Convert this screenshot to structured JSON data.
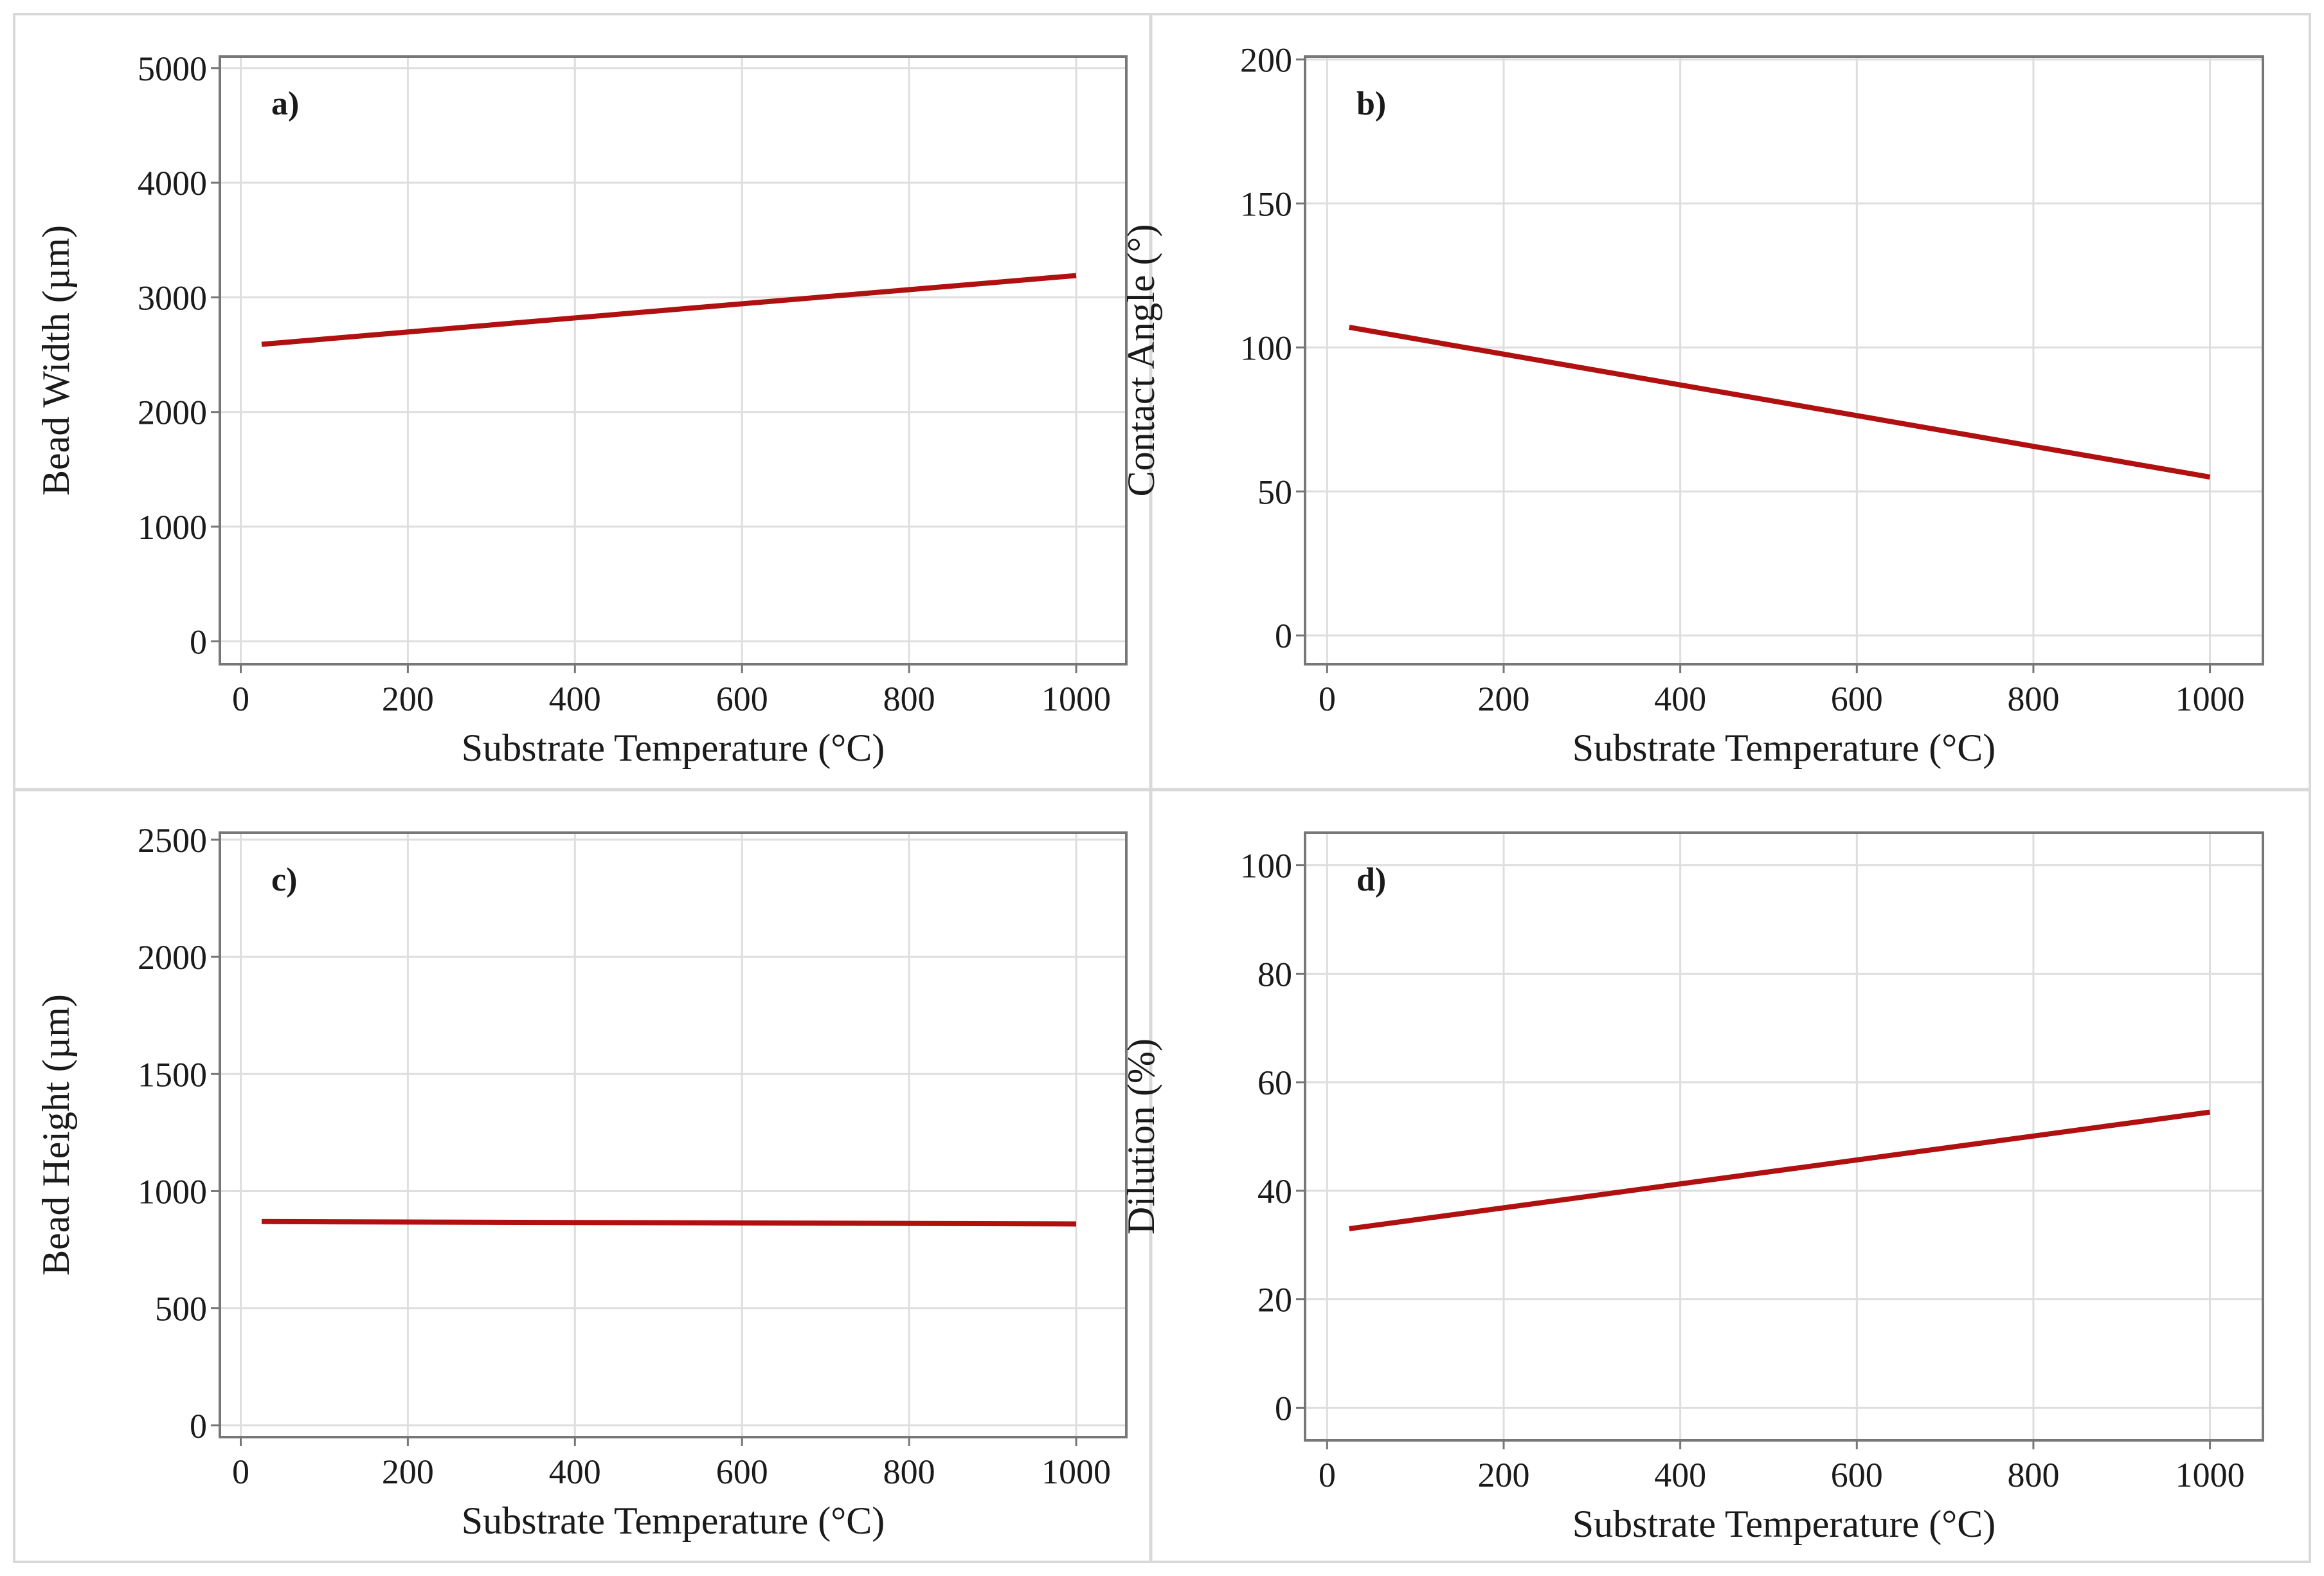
{
  "colors": {
    "line": "#b01010",
    "grid": "#dedede",
    "frame": "#777777",
    "divider": "#d9d9d9"
  },
  "chart_data": [
    {
      "type": "line",
      "panel": "a)",
      "xlabel": "Substrate Temperature (°C)",
      "ylabel": "Bead Width (µm)",
      "xlim": [
        -25,
        1060
      ],
      "ylim": [
        -200,
        5100
      ],
      "xticks": [
        0,
        200,
        400,
        600,
        800,
        1000
      ],
      "yticks": [
        0,
        1000,
        2000,
        3000,
        4000,
        5000
      ],
      "xtick_labels": [
        "0",
        "200",
        "400",
        "600",
        "800",
        "1000"
      ],
      "ytick_labels": [
        "0",
        "1000",
        "2000",
        "3000",
        "4000",
        "5000"
      ],
      "series": [
        {
          "name": "Bead Width",
          "x": [
            25,
            1000
          ],
          "y": [
            2590,
            3190
          ]
        }
      ]
    },
    {
      "type": "line",
      "panel": "b)",
      "xlabel": "Substrate Temperature (°C)",
      "ylabel": "Contact Angle (°)",
      "xlim": [
        -25,
        1060
      ],
      "ylim": [
        -10,
        201
      ],
      "xticks": [
        0,
        200,
        400,
        600,
        800,
        1000
      ],
      "yticks": [
        0,
        50,
        100,
        150,
        200
      ],
      "xtick_labels": [
        "0",
        "200",
        "400",
        "600",
        "800",
        "1000"
      ],
      "ytick_labels": [
        "0",
        "50",
        "100",
        "150",
        "200"
      ],
      "series": [
        {
          "name": "Contact Angle",
          "x": [
            25,
            1000
          ],
          "y": [
            107,
            55
          ]
        }
      ]
    },
    {
      "type": "line",
      "panel": "c)",
      "xlabel": "Substrate Temperature (°C)",
      "ylabel": "Bead Height (µm)",
      "xlim": [
        -25,
        1060
      ],
      "ylim": [
        -50,
        2530
      ],
      "xticks": [
        0,
        200,
        400,
        600,
        800,
        1000
      ],
      "yticks": [
        0,
        500,
        1000,
        1500,
        2000,
        2500
      ],
      "xtick_labels": [
        "0",
        "200",
        "400",
        "600",
        "800",
        "1000"
      ],
      "ytick_labels": [
        "0",
        "500",
        "1000",
        "1500",
        "2000",
        "2500"
      ],
      "series": [
        {
          "name": "Bead Height",
          "x": [
            25,
            1000
          ],
          "y": [
            870,
            860
          ]
        }
      ]
    },
    {
      "type": "line",
      "panel": "d)",
      "xlabel": "Substrate Temperature (°C)",
      "ylabel": "Dilution (%)",
      "xlim": [
        -25,
        1060
      ],
      "ylim": [
        -6,
        106
      ],
      "xticks": [
        0,
        200,
        400,
        600,
        800,
        1000
      ],
      "yticks": [
        0,
        20,
        40,
        60,
        80,
        100
      ],
      "xtick_labels": [
        "0",
        "200",
        "400",
        "600",
        "800",
        "1000"
      ],
      "ytick_labels": [
        "0",
        "20",
        "40",
        "60",
        "80",
        "100"
      ],
      "series": [
        {
          "name": "Dilution",
          "x": [
            25,
            1000
          ],
          "y": [
            33,
            54.5
          ]
        }
      ]
    }
  ]
}
